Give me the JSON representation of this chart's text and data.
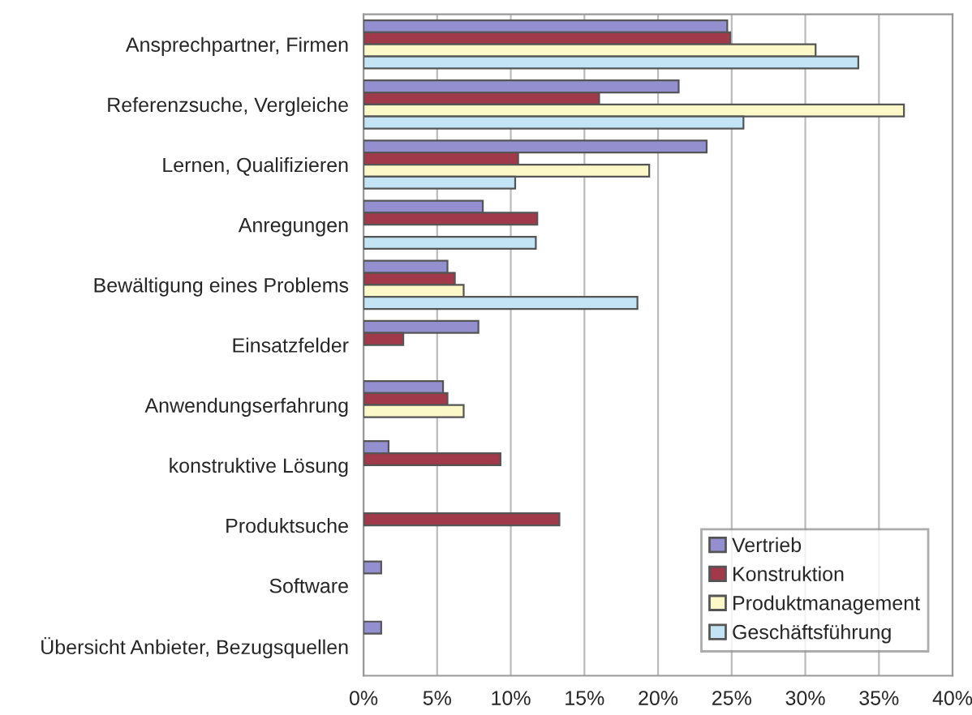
{
  "chart_data": {
    "type": "bar",
    "orientation": "horizontal",
    "categories": [
      "Ansprechpartner, Firmen",
      "Referenzsuche, Vergleiche",
      "Lernen, Qualifizieren",
      "Anregungen",
      "Bewältigung eines Problems",
      "Einsatzfelder",
      "Anwendungserfahrung",
      "konstruktive Lösung",
      "Produktsuche",
      "Software",
      "Übersicht Anbieter, Bezugsquellen"
    ],
    "series": [
      {
        "name": "Vertrieb",
        "color": "#9490d0",
        "values": [
          24.7,
          21.4,
          23.3,
          8.1,
          5.7,
          7.8,
          5.4,
          1.7,
          null,
          1.2,
          1.2
        ]
      },
      {
        "name": "Konstruktion",
        "color": "#a0394a",
        "values": [
          24.9,
          16.0,
          10.5,
          11.8,
          6.2,
          2.7,
          5.7,
          9.3,
          13.3,
          null,
          null
        ]
      },
      {
        "name": "Produktmanagement",
        "color": "#fdf8c8",
        "values": [
          30.7,
          36.7,
          19.4,
          null,
          6.8,
          null,
          6.8,
          null,
          null,
          null,
          null
        ]
      },
      {
        "name": "Geschäftsführung",
        "color": "#c2e4f4",
        "values": [
          33.6,
          25.8,
          10.3,
          11.7,
          18.6,
          null,
          null,
          null,
          null,
          null,
          null
        ]
      }
    ],
    "xlim": [
      0,
      40
    ],
    "xticks": [
      {
        "value": 0,
        "label": "0%"
      },
      {
        "value": 5,
        "label": "5%"
      },
      {
        "value": 10,
        "label": "10%"
      },
      {
        "value": 15,
        "label": "15%"
      },
      {
        "value": 20,
        "label": "20%"
      },
      {
        "value": 25,
        "label": "25%"
      },
      {
        "value": 30,
        "label": "30%"
      },
      {
        "value": 35,
        "label": "35%"
      },
      {
        "value": 40,
        "label": "40%"
      }
    ],
    "grid": "x",
    "legend": "bottom right"
  }
}
